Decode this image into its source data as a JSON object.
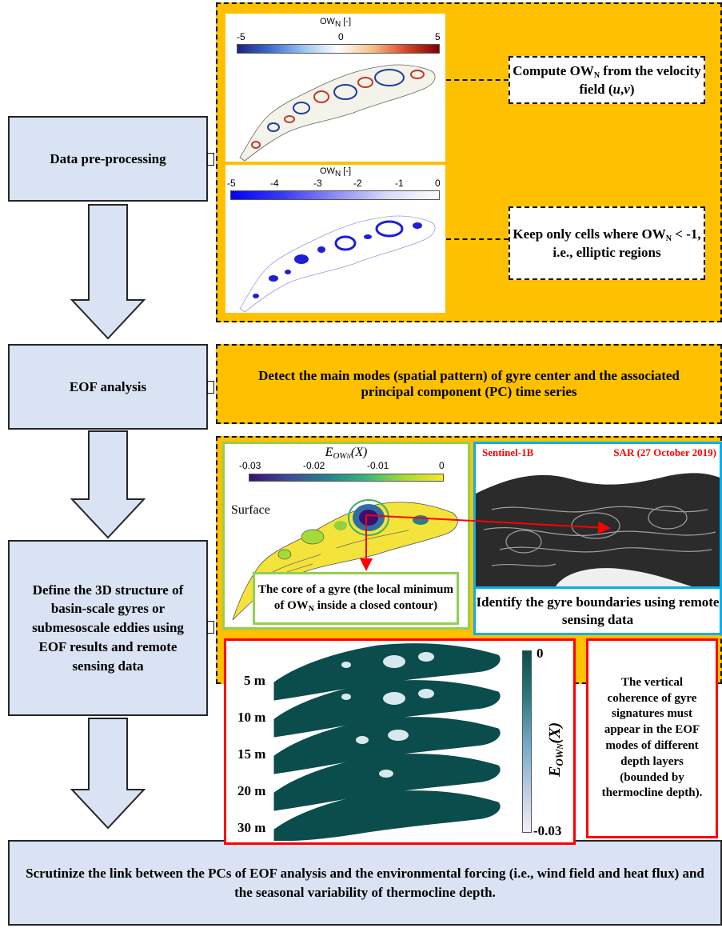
{
  "steps": {
    "preprocessing": "Data pre-processing",
    "eof": "EOF analysis",
    "define3d": "Define the 3D structure of basin-scale gyres or submesoscale eddies using EOF results and remote sensing data",
    "scrutinize": "Scrutinize the link between the PCs of EOF analysis and the environmental forcing (i.e., wind field and heat flux) and the seasonal variability of thermocline depth."
  },
  "preprocessing_panel": {
    "map1": {
      "title": "OW",
      "title_sub": "N",
      "title_unit": " [-]",
      "ticks": [
        "-5",
        "0",
        "5"
      ]
    },
    "map2": {
      "title": "OW",
      "title_sub": "N",
      "title_unit": " [-]",
      "ticks": [
        "-5",
        "-4",
        "-3",
        "-2",
        "-1",
        "0"
      ]
    },
    "note1": {
      "a": "Compute OW",
      "a_sub": "N",
      "b": " from the velocity field (",
      "u": "u",
      "c": ",",
      "v": "v",
      "d": ")"
    },
    "note2": {
      "a": "Keep only cells where OW",
      "a_sub": "N",
      "b": " < -1, i.e., elliptic regions"
    }
  },
  "eof_panel": {
    "text": "Detect the main modes (spatial pattern) of gyre center and the associated principal component (PC) time series"
  },
  "structure_panel": {
    "eof_map": {
      "title": "E",
      "title_sub": "OW",
      "title_subsub": "N",
      "title_arg": "(X)",
      "ticks": [
        "-0.03",
        "-0.02",
        "-0.01",
        "0"
      ],
      "surface_label": "Surface"
    },
    "gyre_core_note": {
      "a": "The core of a gyre (the local minimum of OW",
      "a_sub": "N",
      "b": " inside a closed contour)"
    },
    "sar": {
      "left_label": "Sentinel-1B",
      "right_label": "SAR (27 October 2019)"
    },
    "identify_text": "Identify the gyre boundaries using remote sensing data",
    "depth_layers": [
      "5 m",
      "10 m",
      "15 m",
      "20 m",
      "30 m"
    ],
    "colorbar": {
      "top": "0",
      "bottom": "-0.03",
      "label": "E",
      "label_sub": "OW",
      "label_subsub": "N",
      "label_arg": "(X)"
    },
    "vertical_note": "The vertical coherence of gyre signatures must appear in the EOF modes of different depth layers (bounded by thermocline depth)."
  },
  "colors": {
    "step_fill": "#dae3f3",
    "orange": "#ffc000",
    "green_border": "#92d050",
    "blue_border": "#00b0f0",
    "red_border": "#ff0000",
    "teal": "#0b4d4d"
  }
}
